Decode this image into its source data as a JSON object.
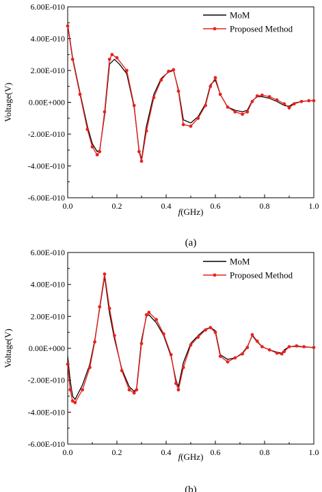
{
  "chart_data": [
    {
      "type": "line",
      "panel_label": "(a)",
      "xlabel": {
        "italic": "f",
        "rest": "(GHz)"
      },
      "ylabel": "Voltage(V)",
      "xlim": [
        0,
        1.0
      ],
      "ylim": [
        -6e-10,
        6e-10
      ],
      "x_ticks": [
        0.0,
        0.2,
        0.4,
        0.6,
        0.8,
        1.0
      ],
      "x_tick_labels": [
        "0.0",
        "0.2",
        "0.4",
        "0.6",
        "0.8",
        "1.0"
      ],
      "y_ticks": [
        6e-10,
        4e-10,
        2e-10,
        0,
        -2e-10,
        -4e-10,
        -6e-10
      ],
      "y_tick_labels": [
        "6.00E-010",
        "4.00E-010",
        "2.00E-010",
        "0.00E+000",
        "-2.00E-010",
        "-4.00E-010",
        "-6.00E-010"
      ],
      "grid": false,
      "legend_position": "top-right",
      "series": [
        {
          "name": "MoM",
          "color": "#000000",
          "marker": "none",
          "x": [
            0.0,
            0.02,
            0.05,
            0.08,
            0.1,
            0.12,
            0.13,
            0.15,
            0.17,
            0.19,
            0.21,
            0.24,
            0.27,
            0.29,
            0.3,
            0.32,
            0.35,
            0.38,
            0.41,
            0.43,
            0.45,
            0.47,
            0.5,
            0.53,
            0.56,
            0.58,
            0.6,
            0.62,
            0.65,
            0.68,
            0.71,
            0.73,
            0.75,
            0.77,
            0.79,
            0.82,
            0.85,
            0.88,
            0.9,
            0.92,
            0.95,
            0.98,
            1.0
          ],
          "y": [
            4.9e-10,
            2.8e-10,
            6e-11,
            -1.5e-10,
            -2.6e-10,
            -3.1e-10,
            -3e-10,
            -8e-11,
            2.4e-10,
            2.7e-10,
            2.4e-10,
            1.8e-10,
            -3e-11,
            -3e-10,
            -3.6e-10,
            -1.5e-10,
            5e-11,
            1.5e-10,
            1.9e-10,
            2e-10,
            8e-11,
            -1.1e-10,
            -1.3e-10,
            -9e-11,
            -1e-11,
            1.1e-10,
            1.4e-10,
            5e-11,
            -3e-11,
            -5e-11,
            -6e-11,
            -5e-11,
            1e-11,
            3.5e-11,
            3.5e-11,
            2.5e-11,
            5e-12,
            -2e-11,
            -2.5e-11,
            -5e-12,
            5e-12,
            1e-11,
            1e-11
          ]
        },
        {
          "name": "Proposed Method",
          "color": "#e8221e",
          "marker": "dot",
          "x": [
            0.0,
            0.02,
            0.05,
            0.08,
            0.1,
            0.12,
            0.13,
            0.15,
            0.17,
            0.18,
            0.2,
            0.24,
            0.27,
            0.29,
            0.3,
            0.32,
            0.35,
            0.38,
            0.41,
            0.43,
            0.45,
            0.47,
            0.5,
            0.53,
            0.56,
            0.58,
            0.6,
            0.62,
            0.65,
            0.68,
            0.71,
            0.73,
            0.75,
            0.77,
            0.79,
            0.82,
            0.85,
            0.88,
            0.9,
            0.92,
            0.95,
            0.98,
            1.0
          ],
          "y": [
            4.8e-10,
            2.7e-10,
            5e-11,
            -1.7e-10,
            -2.8e-10,
            -3.3e-10,
            -3.1e-10,
            -6e-11,
            2.7e-10,
            3e-10,
            2.8e-10,
            2e-10,
            -2e-11,
            -3.1e-10,
            -3.7e-10,
            -1.8e-10,
            3e-11,
            1.4e-10,
            1.95e-10,
            2.05e-10,
            7e-11,
            -1.4e-10,
            -1.5e-10,
            -1e-10,
            -2e-11,
            1e-10,
            1.55e-10,
            5e-11,
            -3e-11,
            -6e-11,
            -7.5e-11,
            -6e-11,
            5e-12,
            4e-11,
            4.5e-11,
            3.5e-11,
            1.5e-11,
            -1e-11,
            -3.5e-11,
            -1e-11,
            5e-12,
            1e-11,
            1e-11
          ]
        }
      ]
    },
    {
      "type": "line",
      "panel_label": "(b)",
      "xlabel": {
        "italic": "f",
        "rest": "(GHz)"
      },
      "ylabel": "Voltage(V)",
      "xlim": [
        0,
        1.0
      ],
      "ylim": [
        -6e-10,
        6e-10
      ],
      "x_ticks": [
        0.0,
        0.2,
        0.4,
        0.6,
        0.8,
        1.0
      ],
      "x_tick_labels": [
        "0.0",
        "0.2",
        "0.4",
        "0.6",
        "0.8",
        "1.0"
      ],
      "y_ticks": [
        6e-10,
        4e-10,
        2e-10,
        0,
        -2e-10,
        -4e-10,
        -6e-10
      ],
      "y_tick_labels": [
        "6.00E-010",
        "4.00E-010",
        "2.00E-010",
        "0.00E+000",
        "-2.00E-010",
        "-4.00E-010",
        "-6.00E-010"
      ],
      "grid": false,
      "legend_position": "top-right",
      "series": [
        {
          "name": "MoM",
          "color": "#000000",
          "marker": "none",
          "x": [
            0.0,
            0.01,
            0.02,
            0.03,
            0.06,
            0.09,
            0.11,
            0.13,
            0.15,
            0.17,
            0.19,
            0.22,
            0.25,
            0.27,
            0.28,
            0.3,
            0.32,
            0.33,
            0.36,
            0.39,
            0.42,
            0.44,
            0.45,
            0.47,
            0.5,
            0.53,
            0.56,
            0.58,
            0.6,
            0.62,
            0.65,
            0.68,
            0.71,
            0.73,
            0.75,
            0.77,
            0.79,
            0.82,
            0.85,
            0.87,
            0.88,
            0.9,
            0.93,
            0.96,
            1.0
          ],
          "y": [
            -5e-11,
            -2e-10,
            -3e-10,
            -3.2e-10,
            -2.3e-10,
            -1e-10,
            5e-11,
            2.5e-10,
            4.5e-10,
            2.2e-10,
            6e-11,
            -1.3e-10,
            -2.4e-10,
            -2.7e-10,
            -2.5e-10,
            5e-11,
            2e-10,
            2.1e-10,
            1.6e-10,
            8e-11,
            -5e-11,
            -2e-10,
            -2.4e-10,
            -9e-11,
            3e-11,
            8e-11,
            1.2e-10,
            1.3e-10,
            1.1e-10,
            -4e-11,
            -7e-11,
            -6e-11,
            -3e-11,
            1e-11,
            8e-11,
            4e-11,
            1e-11,
            -1e-11,
            -2.5e-11,
            -3e-11,
            -1e-11,
            1e-11,
            1.2e-11,
            8e-12,
            5e-12
          ]
        },
        {
          "name": "Proposed Method",
          "color": "#e8221e",
          "marker": "dot",
          "x": [
            0.0,
            0.01,
            0.02,
            0.03,
            0.06,
            0.09,
            0.11,
            0.13,
            0.15,
            0.17,
            0.19,
            0.22,
            0.25,
            0.27,
            0.28,
            0.3,
            0.32,
            0.33,
            0.36,
            0.39,
            0.42,
            0.44,
            0.45,
            0.47,
            0.5,
            0.53,
            0.56,
            0.58,
            0.6,
            0.62,
            0.65,
            0.68,
            0.71,
            0.73,
            0.75,
            0.77,
            0.79,
            0.82,
            0.85,
            0.87,
            0.88,
            0.9,
            0.93,
            0.96,
            1.0
          ],
          "y": [
            -1e-10,
            -2.6e-10,
            -3.3e-10,
            -3.4e-10,
            -2.6e-10,
            -1.2e-10,
            4e-11,
            2.6e-10,
            4.65e-10,
            2.5e-10,
            8e-11,
            -1.4e-10,
            -2.6e-10,
            -2.8e-10,
            -2.6e-10,
            3e-11,
            2.1e-10,
            2.25e-10,
            1.8e-10,
            9e-11,
            -4e-11,
            -2.2e-10,
            -2.6e-10,
            -1.2e-10,
            2e-11,
            7e-11,
            1.15e-10,
            1.3e-10,
            1e-10,
            -5e-11,
            -8.5e-11,
            -6e-11,
            -3.5e-11,
            5e-12,
            8.5e-11,
            4.5e-11,
            1e-11,
            -1e-11,
            -3e-11,
            -3.5e-11,
            -2e-11,
            1e-11,
            1.5e-11,
            1e-11,
            5e-12
          ]
        }
      ]
    }
  ]
}
